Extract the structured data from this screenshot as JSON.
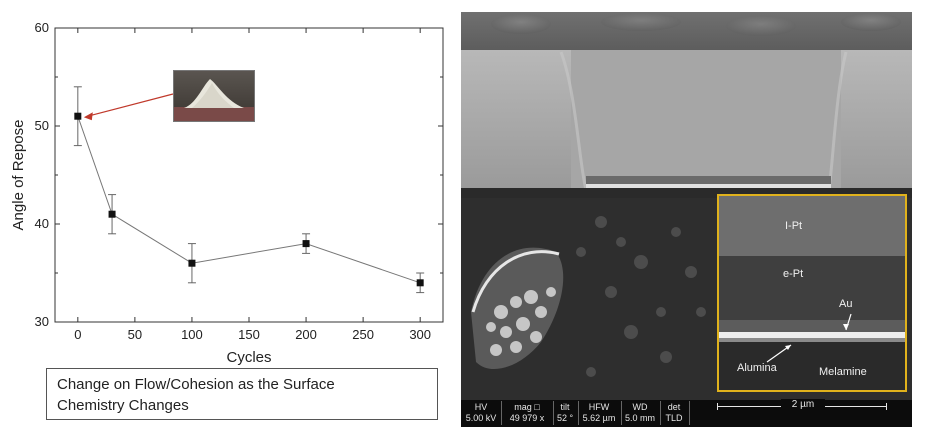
{
  "chart_data": {
    "type": "line",
    "title": "",
    "xlabel": "Cycles",
    "ylabel": "Angle of Repose",
    "xlim": [
      -20,
      320
    ],
    "ylim": [
      30,
      60
    ],
    "xticks": [
      0,
      50,
      100,
      150,
      200,
      250,
      300
    ],
    "yticks": [
      30,
      40,
      50,
      60
    ],
    "series": [
      {
        "x": [
          0,
          30,
          100,
          200,
          300
        ],
        "y": [
          51,
          41,
          36,
          38,
          34
        ],
        "err_low": [
          48,
          39,
          34,
          37,
          33
        ],
        "err_high": [
          54,
          43,
          38,
          39,
          35
        ]
      }
    ],
    "grid": false,
    "marker": "square"
  },
  "caption": {
    "line1": "Change on Flow/Cohesion as the Surface",
    "line2": "Chemistry Changes"
  },
  "sem_image": {
    "inset_labels": {
      "ipt": "I-Pt",
      "ept": "e-Pt",
      "au": "Au",
      "alumina": "Alumina",
      "melamine": "Melamine"
    },
    "scalebar": {
      "hv_label": "HV",
      "hv_value": "5.00 kV",
      "mag_label": "mag □",
      "mag_value": "49 979 x",
      "tilt_label": "tilt",
      "tilt_value": "52 °",
      "hfw_label": "HFW",
      "hfw_value": "5.62 µm",
      "wd_label": "WD",
      "wd_value": "5.0 mm",
      "det_label": "det",
      "det_value": "TLD",
      "scale_text": "2 µm"
    },
    "inset_border_color": "#e0b21c"
  }
}
